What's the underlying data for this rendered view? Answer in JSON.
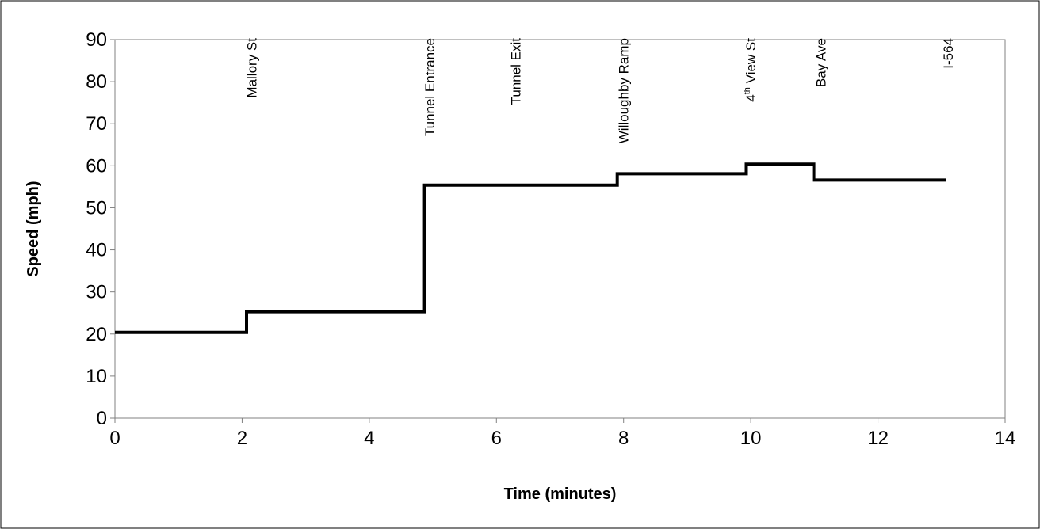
{
  "chart_data": {
    "type": "line",
    "title": "",
    "xlabel": "Time (minutes)",
    "ylabel": "Speed (mph)",
    "xlim": [
      0,
      14
    ],
    "ylim": [
      0,
      90
    ],
    "xticks": [
      0,
      2,
      4,
      6,
      8,
      10,
      12,
      14
    ],
    "yticks": [
      0,
      10,
      20,
      30,
      40,
      50,
      60,
      70,
      80,
      90
    ],
    "grid": false,
    "legend": "none",
    "line_color": "#000000",
    "series": [
      {
        "step": true,
        "x": [
          0,
          2.07,
          2.07,
          4.87,
          4.87,
          7.9,
          7.9,
          9.93,
          9.93,
          10.99,
          10.99,
          13.07
        ],
        "y": [
          20.4,
          20.4,
          25.3,
          25.3,
          55.4,
          55.4,
          58.1,
          58.1,
          60.4,
          60.4,
          56.6,
          56.6
        ]
      }
    ],
    "annotations": [
      {
        "text": "Mallory St",
        "x": 2.15
      },
      {
        "text": "Tunnel Entrance",
        "x": 4.95
      },
      {
        "text": "Tunnel Exit",
        "x": 6.3
      },
      {
        "text": "Willoughby Ramp",
        "x": 8.0
      },
      {
        "text": "View St",
        "prefix": "4",
        "superscript": "th",
        "x": 10.0
      },
      {
        "text": "Bay Ave",
        "x": 11.1
      },
      {
        "text": "I-564",
        "x": 13.1
      }
    ]
  }
}
